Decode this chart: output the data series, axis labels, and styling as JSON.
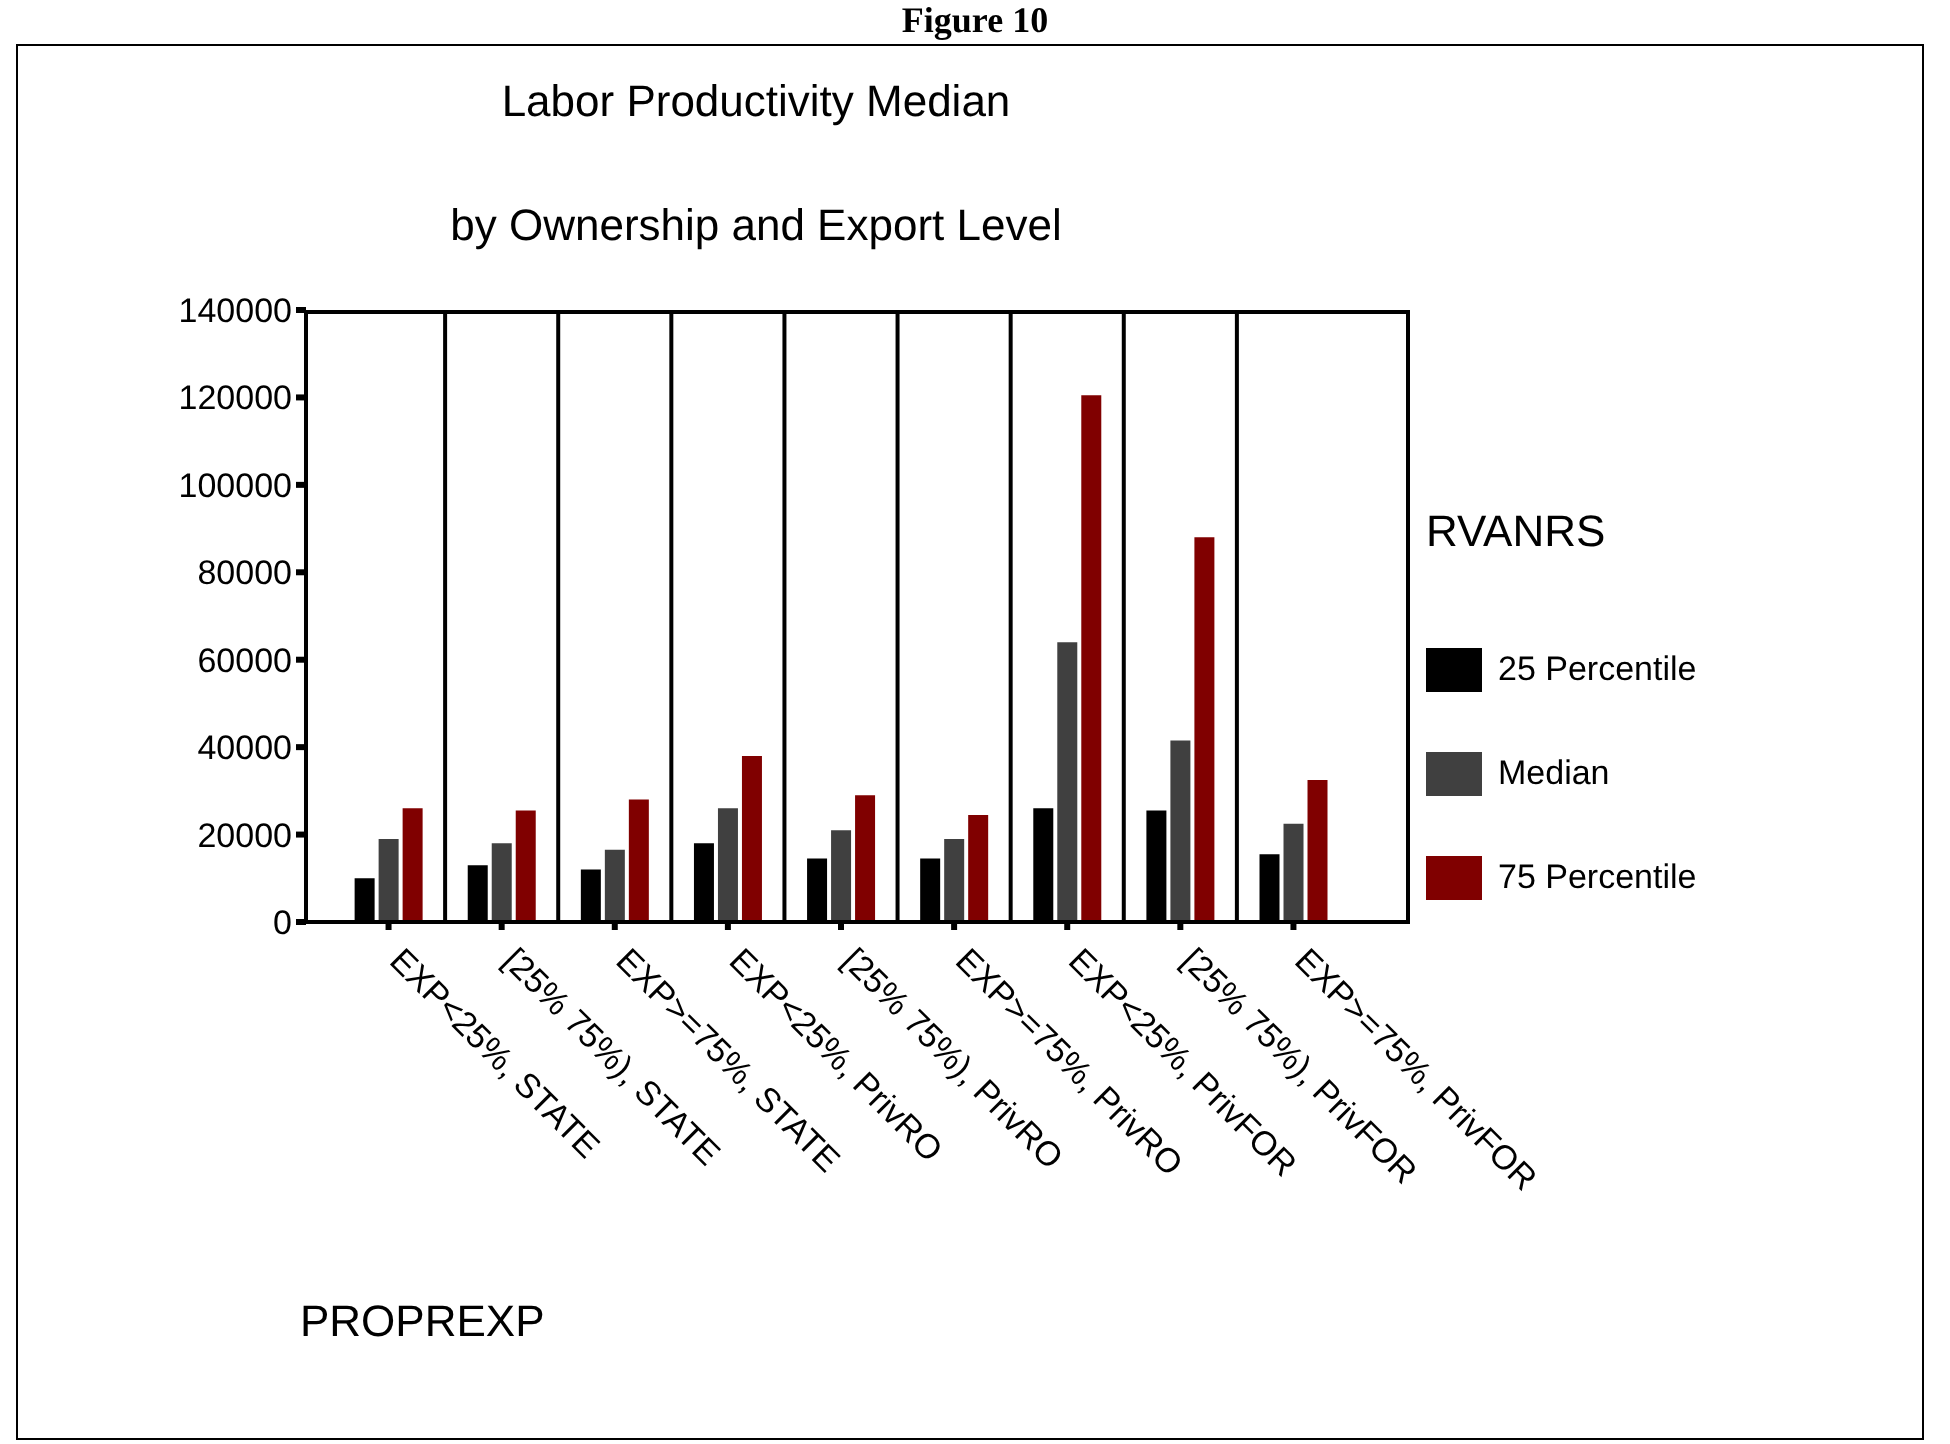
{
  "chart_data": {
    "type": "bar",
    "title": "Labor Productivity Median",
    "subtitle": "by Ownership and Export Level",
    "xlabel": "PROPREXP",
    "legend_title": "RVANRS",
    "annotations": [
      "Figure 10"
    ],
    "categories": [
      "EXP<25%, STATE",
      "[25% 75%), STATE",
      "EXP>=75%, STATE",
      "EXP<25%, PrivRO",
      "[25% 75%), PrivRO",
      "EXP>=75%, PrivRO",
      "EXP<25%, PrivFOR",
      "[25% 75%), PrivFOR",
      "EXP>=75%, PrivFOR"
    ],
    "series": [
      {
        "name": "25 Percentile",
        "color": "#000000",
        "values": [
          10000,
          13000,
          12000,
          18000,
          14500,
          14500,
          26000,
          25500,
          15500
        ]
      },
      {
        "name": "Median",
        "color": "#404040",
        "values": [
          19000,
          18000,
          16500,
          26000,
          21000,
          19000,
          64000,
          41500,
          22500
        ]
      },
      {
        "name": "75 Percentile",
        "color": "#800000",
        "values": [
          26000,
          25500,
          28000,
          38000,
          29000,
          24500,
          120500,
          88000,
          32500
        ]
      }
    ],
    "ylim": [
      0,
      140000
    ],
    "yticks": [
      0,
      20000,
      40000,
      60000,
      80000,
      100000,
      120000,
      140000
    ],
    "grid": "x",
    "legend": "right"
  }
}
